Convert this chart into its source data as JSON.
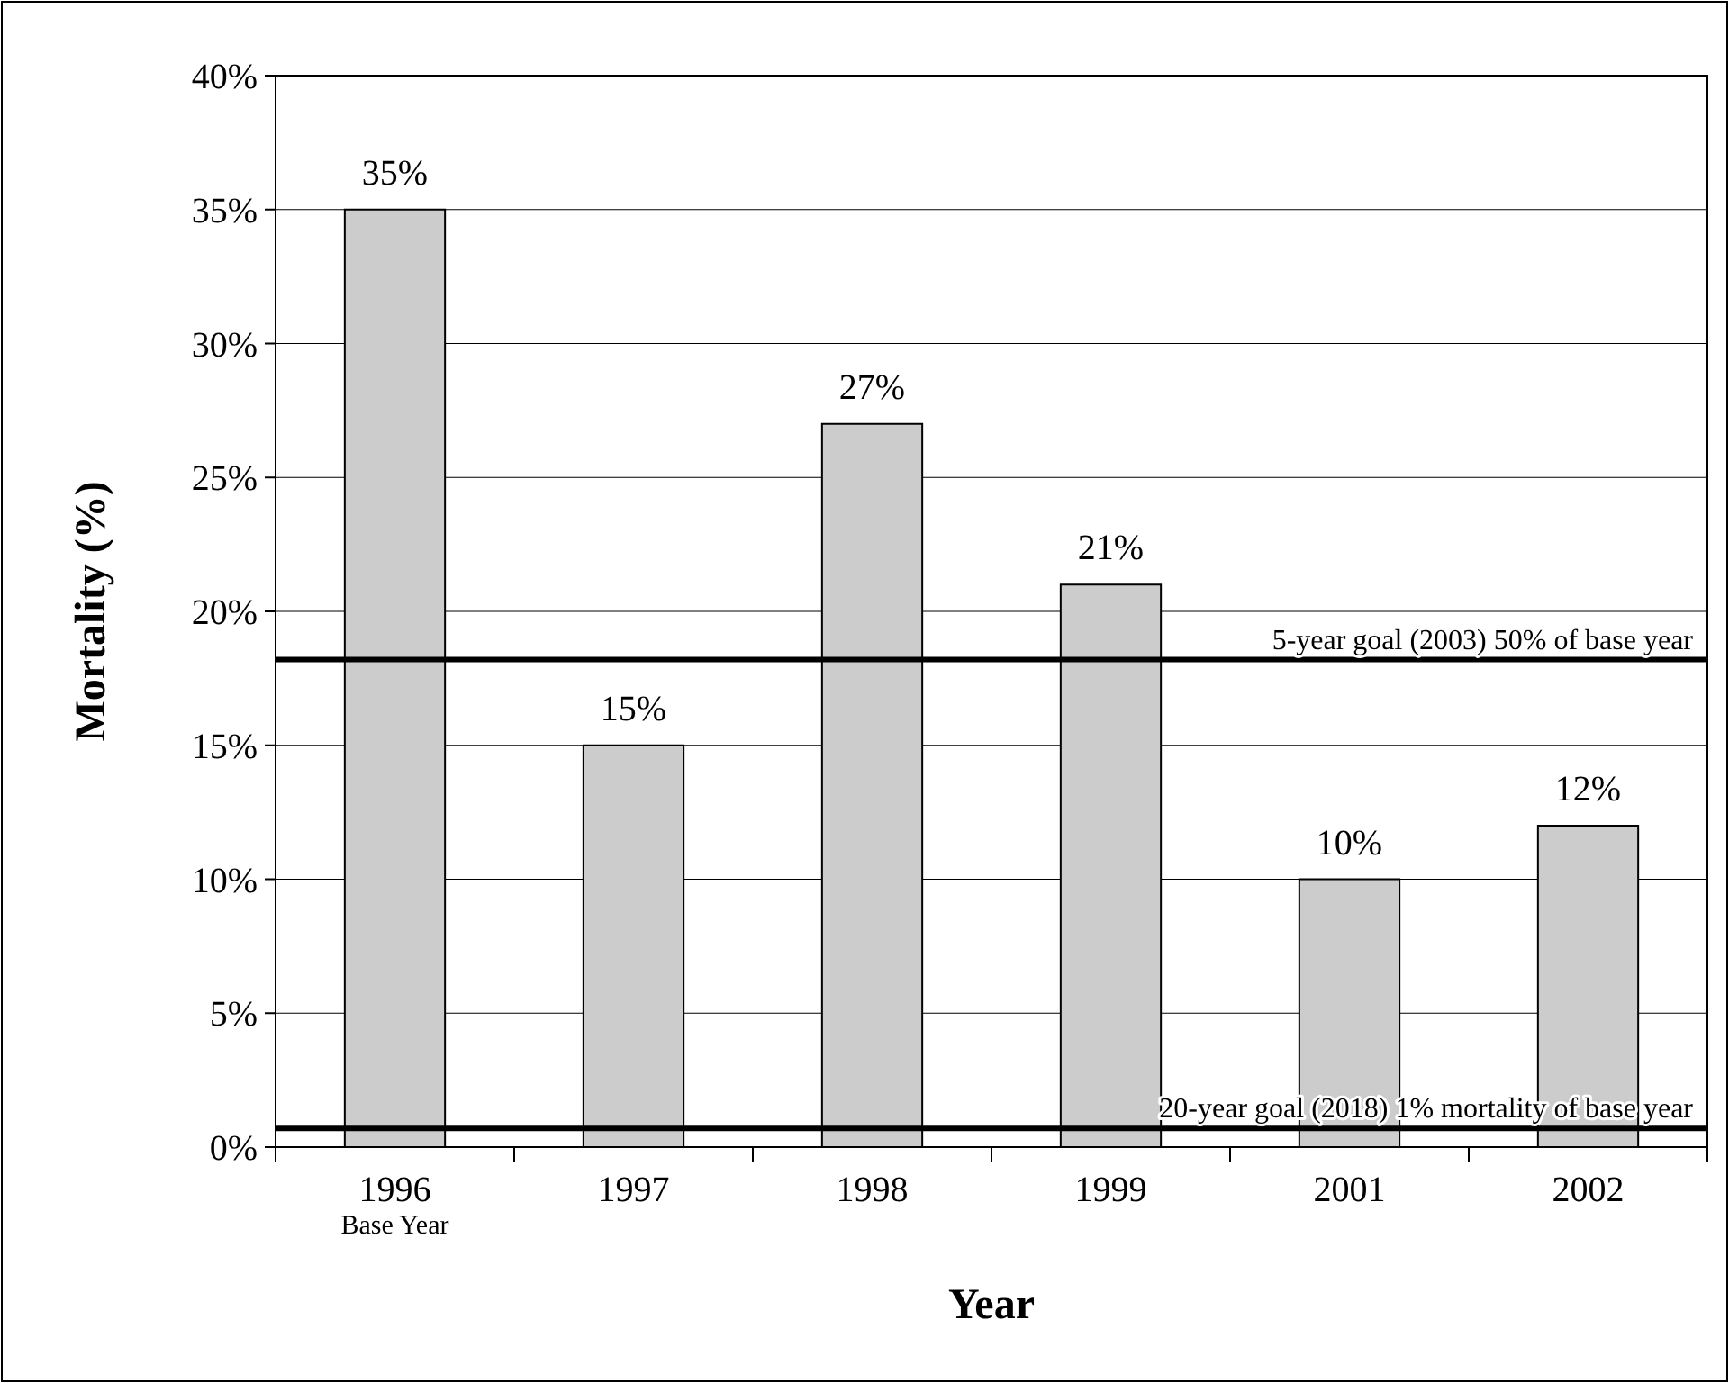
{
  "chart_data": {
    "type": "bar",
    "xlabel": "Year",
    "ylabel": "Mortality (%)",
    "categories": [
      "1996",
      "1997",
      "1998",
      "1999",
      "2001",
      "2002"
    ],
    "values": [
      35,
      15,
      27,
      21,
      10,
      12
    ],
    "value_labels": [
      "35%",
      "15%",
      "27%",
      "21%",
      "10%",
      "12%"
    ],
    "color": "#cccccc",
    "ylim": [
      0,
      40
    ],
    "yticks": [
      {
        "value": 0,
        "label": "0%"
      },
      {
        "value": 5,
        "label": "5%"
      },
      {
        "value": 10,
        "label": "10%"
      },
      {
        "value": 15,
        "label": "15%"
      },
      {
        "value": 20,
        "label": "20%"
      },
      {
        "value": 25,
        "label": "25%"
      },
      {
        "value": 30,
        "label": "30%"
      },
      {
        "value": 35,
        "label": "35%"
      },
      {
        "value": 40,
        "label": "40%"
      }
    ],
    "grid": "y",
    "ref_lines": [
      {
        "axis": "y",
        "value": 18.2,
        "label": "5-year goal (2003) 50% of base year",
        "color": "#000000"
      },
      {
        "axis": "y",
        "value": 0.7,
        "label": "20-year goal (2018) 1% mortality of base year",
        "color": "#000000"
      }
    ],
    "annotations": [
      "Base Year"
    ]
  }
}
